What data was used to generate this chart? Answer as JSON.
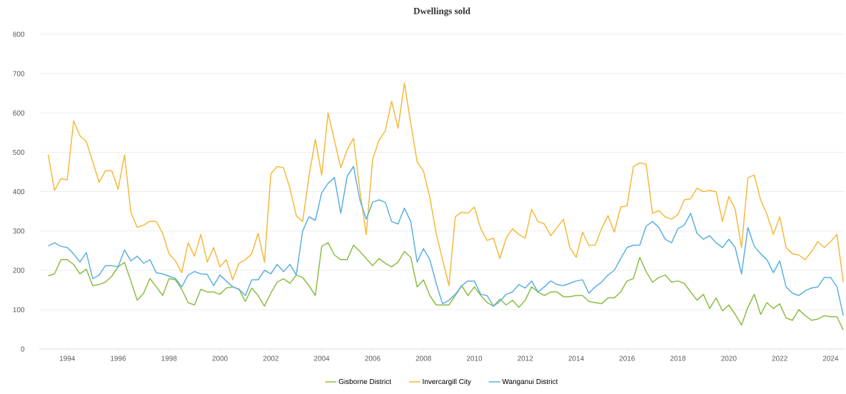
{
  "chart_data": {
    "type": "line",
    "title": "Dwellings sold",
    "x": [
      1993.25,
      1993.5,
      1993.75,
      1994,
      1994.25,
      1994.5,
      1994.75,
      1995,
      1995.25,
      1995.5,
      1995.75,
      1996,
      1996.25,
      1996.5,
      1996.75,
      1997,
      1997.25,
      1997.5,
      1997.75,
      1998,
      1998.25,
      1998.5,
      1998.75,
      1999,
      1999.25,
      1999.5,
      1999.75,
      2000,
      2000.25,
      2000.5,
      2000.75,
      2001,
      2001.25,
      2001.5,
      2001.75,
      2002,
      2002.25,
      2002.5,
      2002.75,
      2003,
      2003.25,
      2003.5,
      2003.75,
      2004,
      2004.25,
      2004.5,
      2004.75,
      2005,
      2005.25,
      2005.5,
      2005.75,
      2006,
      2006.25,
      2006.5,
      2006.75,
      2007,
      2007.25,
      2007.5,
      2007.75,
      2008,
      2008.25,
      2008.5,
      2008.75,
      2009,
      2009.25,
      2009.5,
      2009.75,
      2010,
      2010.25,
      2010.5,
      2010.75,
      2011,
      2011.25,
      2011.5,
      2011.75,
      2012,
      2012.25,
      2012.5,
      2012.75,
      2013,
      2013.25,
      2013.5,
      2013.75,
      2014,
      2014.25,
      2014.5,
      2014.75,
      2015,
      2015.25,
      2015.5,
      2015.75,
      2016,
      2016.25,
      2016.5,
      2016.75,
      2017,
      2017.25,
      2017.5,
      2017.75,
      2018,
      2018.25,
      2018.5,
      2018.75,
      2019,
      2019.25,
      2019.5,
      2019.75,
      2020,
      2020.25,
      2020.5,
      2020.75,
      2021,
      2021.25,
      2021.5,
      2021.75,
      2022,
      2022.25,
      2022.5,
      2022.75,
      2023,
      2023.25,
      2023.5,
      2023.75,
      2024,
      2024.25,
      2024.5
    ],
    "series": [
      {
        "name": "Gisborne District",
        "color": "#8cbd45",
        "values": [
          186,
          191,
          227,
          227,
          215,
          191,
          203,
          161,
          164,
          170,
          185,
          209,
          220,
          173,
          124,
          142,
          179,
          158,
          136,
          179,
          176,
          152,
          118,
          112,
          152,
          145,
          145,
          139,
          155,
          158,
          152,
          121,
          155,
          136,
          109,
          142,
          170,
          179,
          167,
          188,
          182,
          161,
          136,
          261,
          270,
          239,
          227,
          227,
          264,
          248,
          230,
          212,
          230,
          218,
          209,
          221,
          248,
          233,
          158,
          176,
          136,
          112,
          112,
          112,
          136,
          161,
          136,
          158,
          136,
          118,
          109,
          127,
          112,
          124,
          106,
          124,
          158,
          145,
          136,
          145,
          145,
          133,
          133,
          136,
          136,
          121,
          118,
          115,
          130,
          130,
          145,
          173,
          179,
          233,
          197,
          170,
          182,
          188,
          170,
          173,
          167,
          145,
          124,
          139,
          103,
          130,
          97,
          112,
          88,
          61,
          106,
          139,
          88,
          118,
          103,
          115,
          79,
          73,
          100,
          85,
          73,
          76,
          85,
          82,
          82,
          48
        ]
      },
      {
        "name": "Invercargill City",
        "color": "#f6b93b",
        "values": [
          494,
          403,
          433,
          430,
          580,
          542,
          527,
          476,
          424,
          453,
          453,
          406,
          493,
          348,
          309,
          315,
          325,
          324,
          294,
          242,
          224,
          194,
          270,
          236,
          291,
          221,
          258,
          209,
          227,
          176,
          218,
          227,
          242,
          294,
          221,
          445,
          464,
          461,
          409,
          339,
          324,
          439,
          533,
          442,
          600,
          530,
          461,
          506,
          536,
          403,
          291,
          482,
          530,
          555,
          630,
          561,
          676,
          573,
          476,
          452,
          385,
          294,
          227,
          161,
          336,
          348,
          345,
          361,
          306,
          276,
          282,
          230,
          282,
          306,
          291,
          282,
          355,
          324,
          318,
          288,
          309,
          330,
          258,
          233,
          297,
          264,
          264,
          306,
          339,
          297,
          361,
          364,
          464,
          473,
          470,
          345,
          352,
          336,
          330,
          342,
          379,
          382,
          409,
          400,
          403,
          400,
          324,
          388,
          355,
          258,
          436,
          442,
          379,
          342,
          291,
          336,
          258,
          242,
          239,
          227,
          248,
          273,
          258,
          273,
          291,
          170
        ]
      },
      {
        "name": "Wanganui District",
        "color": "#5bb0e2",
        "values": [
          262,
          270,
          261,
          258,
          242,
          221,
          245,
          179,
          188,
          212,
          212,
          209,
          252,
          224,
          236,
          218,
          227,
          194,
          191,
          185,
          179,
          158,
          188,
          197,
          191,
          190,
          161,
          188,
          173,
          158,
          152,
          136,
          176,
          176,
          200,
          191,
          215,
          197,
          215,
          188,
          300,
          336,
          327,
          397,
          421,
          436,
          345,
          439,
          464,
          379,
          330,
          373,
          379,
          373,
          324,
          318,
          358,
          324,
          221,
          255,
          227,
          167,
          115,
          124,
          139,
          161,
          173,
          173,
          139,
          136,
          109,
          121,
          139,
          145,
          164,
          155,
          173,
          145,
          158,
          173,
          164,
          161,
          167,
          173,
          176,
          142,
          158,
          170,
          188,
          200,
          230,
          258,
          264,
          264,
          312,
          324,
          309,
          279,
          270,
          306,
          315,
          345,
          294,
          279,
          288,
          270,
          258,
          279,
          258,
          191,
          309,
          261,
          242,
          227,
          194,
          224,
          158,
          142,
          136,
          148,
          155,
          158,
          182,
          182,
          158,
          85
        ]
      }
    ],
    "xlim": [
      1992.9,
      2024.55
    ],
    "ylim": [
      0,
      800
    ],
    "xticks": [
      1994,
      1996,
      1998,
      2000,
      2002,
      2004,
      2006,
      2008,
      2010,
      2012,
      2014,
      2016,
      2018,
      2020,
      2022,
      2024
    ],
    "yticks": [
      0,
      100,
      200,
      300,
      400,
      500,
      600,
      700,
      800
    ],
    "grid": "y",
    "legend": "bottom",
    "marker": "none",
    "line_style": "solid"
  }
}
